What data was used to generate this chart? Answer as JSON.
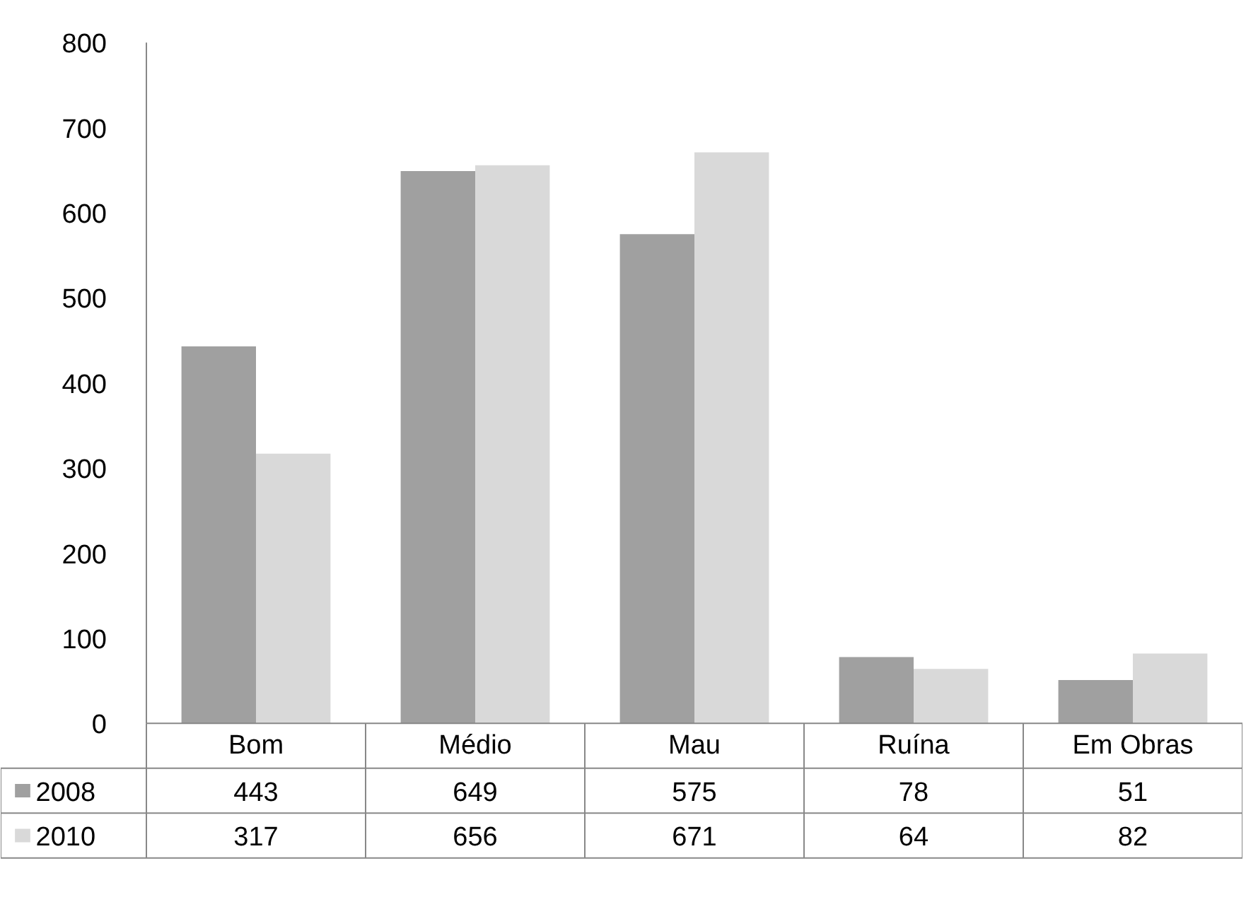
{
  "chart_data": {
    "type": "bar",
    "categories": [
      "Bom",
      "Médio",
      "Mau",
      "Ruína",
      "Em Obras"
    ],
    "series": [
      {
        "name": "2008",
        "color": "#a0a0a0",
        "values": [
          443,
          649,
          575,
          78,
          51
        ]
      },
      {
        "name": "2010",
        "color": "#d9d9d9",
        "values": [
          317,
          656,
          671,
          64,
          82
        ]
      }
    ],
    "ylim": [
      0,
      800
    ],
    "yticks": [
      0,
      100,
      200,
      300,
      400,
      500,
      600,
      700,
      800
    ],
    "grid": false,
    "legend": "bottom",
    "data_labels": true
  }
}
